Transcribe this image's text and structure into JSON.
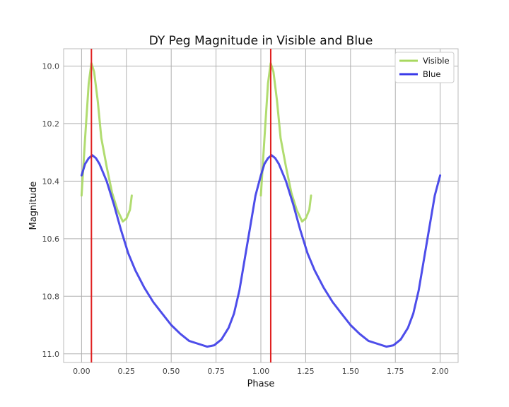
{
  "chart_data": {
    "type": "line",
    "title": "DY Peg Magnitude in Visible and Blue",
    "xlabel": "Phase",
    "ylabel": "Magnitude",
    "xlim": [
      -0.1,
      2.1
    ],
    "ylim": [
      11.03,
      9.94
    ],
    "y_inverted": true,
    "grid": true,
    "legend_position": "top-right",
    "xticks": [
      0.0,
      0.25,
      0.5,
      0.75,
      1.0,
      1.25,
      1.5,
      1.75,
      2.0
    ],
    "xtick_labels": [
      "0.00",
      "0.25",
      "0.50",
      "0.75",
      "1.00",
      "1.25",
      "1.50",
      "1.75",
      "2.00"
    ],
    "yticks": [
      10.0,
      10.2,
      10.4,
      10.6,
      10.8,
      11.0
    ],
    "ytick_labels": [
      "10.0",
      "10.2",
      "10.4",
      "10.6",
      "10.8",
      "11.0"
    ],
    "series": [
      {
        "name": "Visible",
        "color": "#a8d860",
        "segments": [
          [
            [
              0.0,
              10.45
            ],
            [
              0.02,
              10.25
            ],
            [
              0.04,
              10.06
            ],
            [
              0.055,
              9.99
            ],
            [
              0.07,
              10.02
            ],
            [
              0.09,
              10.12
            ],
            [
              0.11,
              10.25
            ],
            [
              0.14,
              10.35
            ],
            [
              0.17,
              10.44
            ],
            [
              0.2,
              10.5
            ],
            [
              0.23,
              10.54
            ],
            [
              0.25,
              10.53
            ],
            [
              0.27,
              10.5
            ],
            [
              0.28,
              10.45
            ]
          ],
          [
            [
              1.0,
              10.45
            ],
            [
              1.02,
              10.25
            ],
            [
              1.04,
              10.06
            ],
            [
              1.055,
              9.99
            ],
            [
              1.07,
              10.02
            ],
            [
              1.09,
              10.12
            ],
            [
              1.11,
              10.25
            ],
            [
              1.14,
              10.35
            ],
            [
              1.17,
              10.44
            ],
            [
              1.2,
              10.5
            ],
            [
              1.23,
              10.54
            ],
            [
              1.25,
              10.53
            ],
            [
              1.27,
              10.5
            ],
            [
              1.28,
              10.45
            ]
          ]
        ]
      },
      {
        "name": "Blue",
        "color": "#3a3ae8",
        "segments": [
          [
            [
              0.0,
              10.38
            ],
            [
              0.02,
              10.34
            ],
            [
              0.04,
              10.32
            ],
            [
              0.06,
              10.31
            ],
            [
              0.08,
              10.32
            ],
            [
              0.1,
              10.34
            ],
            [
              0.14,
              10.4
            ],
            [
              0.18,
              10.48
            ],
            [
              0.22,
              10.57
            ],
            [
              0.26,
              10.65
            ],
            [
              0.3,
              10.71
            ],
            [
              0.35,
              10.77
            ],
            [
              0.4,
              10.82
            ],
            [
              0.45,
              10.86
            ],
            [
              0.5,
              10.9
            ],
            [
              0.55,
              10.93
            ],
            [
              0.6,
              10.955
            ],
            [
              0.65,
              10.965
            ],
            [
              0.7,
              10.975
            ],
            [
              0.74,
              10.97
            ],
            [
              0.78,
              10.95
            ],
            [
              0.82,
              10.91
            ],
            [
              0.85,
              10.86
            ],
            [
              0.88,
              10.78
            ],
            [
              0.91,
              10.67
            ],
            [
              0.94,
              10.56
            ],
            [
              0.97,
              10.45
            ],
            [
              1.0,
              10.38
            ],
            [
              1.02,
              10.34
            ],
            [
              1.04,
              10.32
            ],
            [
              1.06,
              10.31
            ],
            [
              1.08,
              10.32
            ],
            [
              1.1,
              10.34
            ],
            [
              1.14,
              10.4
            ],
            [
              1.18,
              10.48
            ],
            [
              1.22,
              10.57
            ],
            [
              1.26,
              10.65
            ],
            [
              1.3,
              10.71
            ],
            [
              1.35,
              10.77
            ],
            [
              1.4,
              10.82
            ],
            [
              1.45,
              10.86
            ],
            [
              1.5,
              10.9
            ],
            [
              1.55,
              10.93
            ],
            [
              1.6,
              10.955
            ],
            [
              1.65,
              10.965
            ],
            [
              1.7,
              10.975
            ],
            [
              1.74,
              10.97
            ],
            [
              1.78,
              10.95
            ],
            [
              1.82,
              10.91
            ],
            [
              1.85,
              10.86
            ],
            [
              1.88,
              10.78
            ],
            [
              1.91,
              10.67
            ],
            [
              1.94,
              10.56
            ],
            [
              1.97,
              10.45
            ],
            [
              2.0,
              10.38
            ]
          ]
        ]
      }
    ],
    "vertical_lines": [
      {
        "x": 0.055,
        "color": "#e02020"
      },
      {
        "x": 1.055,
        "color": "#e02020"
      }
    ]
  }
}
